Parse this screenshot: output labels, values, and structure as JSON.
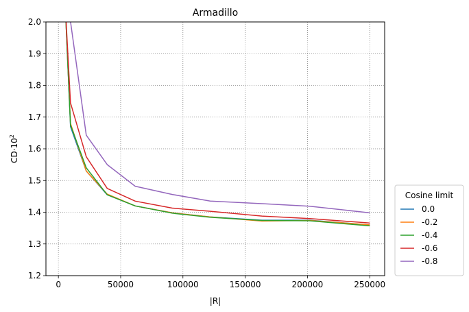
{
  "chart_data": {
    "type": "line",
    "title": "Armadillo",
    "xlabel": "|R|",
    "ylabel_base": "CD·10",
    "ylabel_sup": "2",
    "xlim": [
      -10000,
      262000
    ],
    "ylim": [
      1.2,
      2.0
    ],
    "xticks": [
      0,
      50000,
      100000,
      150000,
      200000,
      250000
    ],
    "yticks": [
      1.2,
      1.3,
      1.4,
      1.5,
      1.6,
      1.7,
      1.8,
      1.9,
      2.0
    ],
    "xtick_labels": [
      "0",
      "50000",
      "100000",
      "150000",
      "200000",
      "250000"
    ],
    "ytick_labels": [
      "1.2",
      "1.3",
      "1.4",
      "1.5",
      "1.6",
      "1.7",
      "1.8",
      "1.9",
      "2.0"
    ],
    "grid": true,
    "legend_title": "Cosine limit",
    "legend_position": "outside-right-bottom",
    "series": [
      {
        "name": "0.0",
        "color": "#1f77b4",
        "x": [
          5500,
          9700,
          22400,
          39200,
          61700,
          91500,
          122000,
          163500,
          201800,
          250000
        ],
        "y": [
          2.05,
          1.67,
          1.53,
          1.455,
          1.42,
          1.398,
          1.385,
          1.375,
          1.375,
          1.36
        ]
      },
      {
        "name": "-0.2",
        "color": "#ff7f0e",
        "x": [
          5500,
          9700,
          22400,
          39200,
          61700,
          91500,
          122000,
          163500,
          201800,
          250000
        ],
        "y": [
          2.05,
          1.68,
          1.53,
          1.457,
          1.42,
          1.398,
          1.385,
          1.372,
          1.374,
          1.36
        ]
      },
      {
        "name": "-0.4",
        "color": "#2ca02c",
        "x": [
          5500,
          9700,
          22400,
          39200,
          61700,
          91500,
          122000,
          163500,
          201800,
          250000
        ],
        "y": [
          2.05,
          1.675,
          1.54,
          1.455,
          1.42,
          1.397,
          1.384,
          1.374,
          1.373,
          1.357
        ]
      },
      {
        "name": "-0.6",
        "color": "#d62728",
        "x": [
          5500,
          9700,
          22400,
          39200,
          61700,
          91500,
          122000,
          163500,
          201800,
          250000
        ],
        "y": [
          2.05,
          1.745,
          1.575,
          1.475,
          1.435,
          1.413,
          1.403,
          1.388,
          1.38,
          1.366
        ]
      },
      {
        "name": "-0.8",
        "color": "#9467bd",
        "x": [
          8000,
          22400,
          39200,
          61700,
          91500,
          122000,
          163500,
          201800,
          250000
        ],
        "y": [
          2.05,
          1.643,
          1.55,
          1.482,
          1.456,
          1.435,
          1.427,
          1.419,
          1.398
        ]
      }
    ]
  }
}
